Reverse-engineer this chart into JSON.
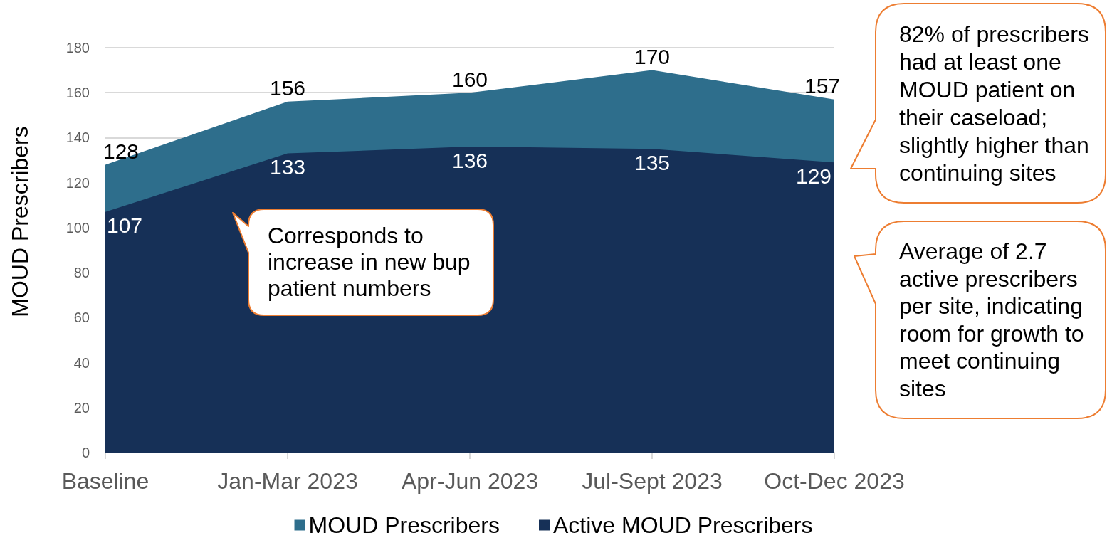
{
  "chart_data": {
    "type": "area",
    "ylabel": "MOUD Prescribers",
    "categories": [
      "Baseline",
      "Jan-Mar 2023",
      "Apr-Jun 2023",
      "Jul-Sept 2023",
      "Oct-Dec 2023"
    ],
    "series": [
      {
        "name": "MOUD Prescribers",
        "color": "#2e6e8c",
        "values": [
          128,
          156,
          160,
          170,
          157
        ]
      },
      {
        "name": "Active MOUD Prescribers",
        "color": "#163057",
        "values": [
          107,
          133,
          136,
          135,
          129
        ]
      }
    ],
    "ylim": [
      0,
      180
    ],
    "yticks": [
      0,
      20,
      40,
      60,
      80,
      100,
      120,
      140,
      160,
      180
    ],
    "grid": "y",
    "legend": "bottom",
    "data_labels": true,
    "annotations": [
      "Corresponds to increase in new bup patient numbers",
      "82% of prescribers had at least one MOUD patient on their caseload; slightly higher than continuing sites",
      "Average of 2.7 active prescribers per site, indicating room for growth to meet continuing sites"
    ]
  }
}
